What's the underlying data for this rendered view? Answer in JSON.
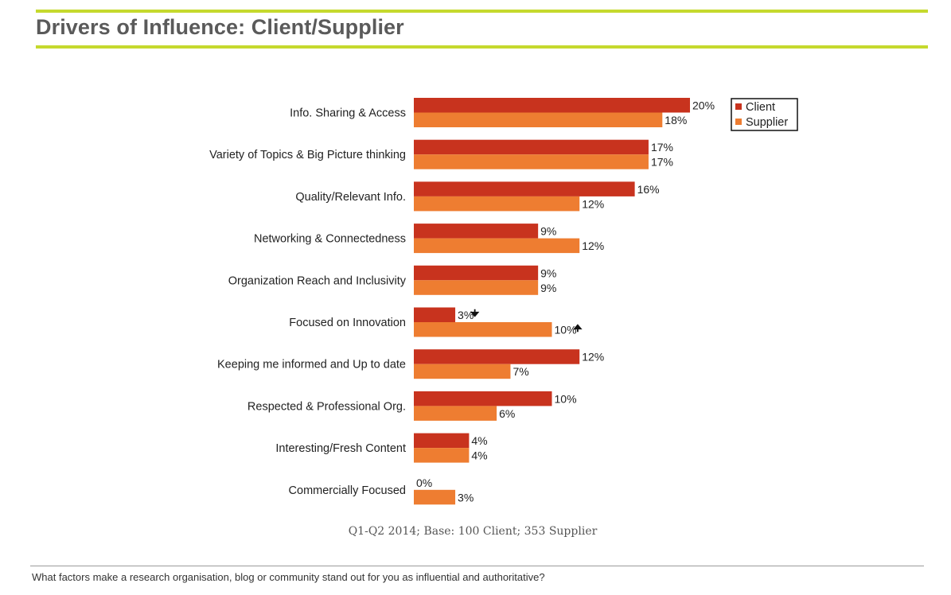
{
  "title": "Drivers of Influence: Client/Supplier",
  "base_note": "Q1-Q2 2014; Base: 100 Client; 353 Supplier",
  "question": "What factors make a research organisation, blog or community stand out for you as influential and authoritative?",
  "colors": {
    "accent_rule": "#c5d92d",
    "client": "#c8331e",
    "supplier": "#ee7d31"
  },
  "chart_data": {
    "type": "bar",
    "orientation": "horizontal",
    "title": "Drivers of Influence: Client/Supplier",
    "xlabel": "",
    "ylabel": "",
    "value_format": "percent",
    "xlim": [
      0,
      20
    ],
    "legend_position": "top-right",
    "categories": [
      "Info. Sharing & Access",
      "Variety of Topics & Big Picture thinking",
      "Quality/Relevant Info.",
      "Networking & Connectedness",
      "Organization Reach and Inclusivity",
      "Focused on Innovation",
      "Keeping me informed and Up to date",
      "Respected & Professional Org.",
      "Interesting/Fresh Content",
      "Commercially Focused"
    ],
    "series": [
      {
        "name": "Client",
        "color": "#c8331e",
        "values": [
          20,
          17,
          16,
          9,
          9,
          3,
          12,
          10,
          4,
          0
        ]
      },
      {
        "name": "Supplier",
        "color": "#ee7d31",
        "values": [
          18,
          17,
          12,
          12,
          9,
          10,
          7,
          6,
          4,
          3
        ]
      }
    ],
    "labels": {
      "Client": [
        "20%",
        "17%",
        "16%",
        "9%",
        "9%",
        "3%",
        "12%",
        "10%",
        "4%",
        "0%"
      ],
      "Supplier": [
        "18%",
        "17%",
        "12%",
        "12%",
        "9%",
        "10%",
        "7%",
        "6%",
        "4%",
        "3%"
      ]
    },
    "annotations": [
      {
        "category": "Focused on Innovation",
        "series": "Client",
        "marker": "arrow-down"
      },
      {
        "category": "Focused on Innovation",
        "series": "Supplier",
        "marker": "arrow-up"
      }
    ]
  }
}
